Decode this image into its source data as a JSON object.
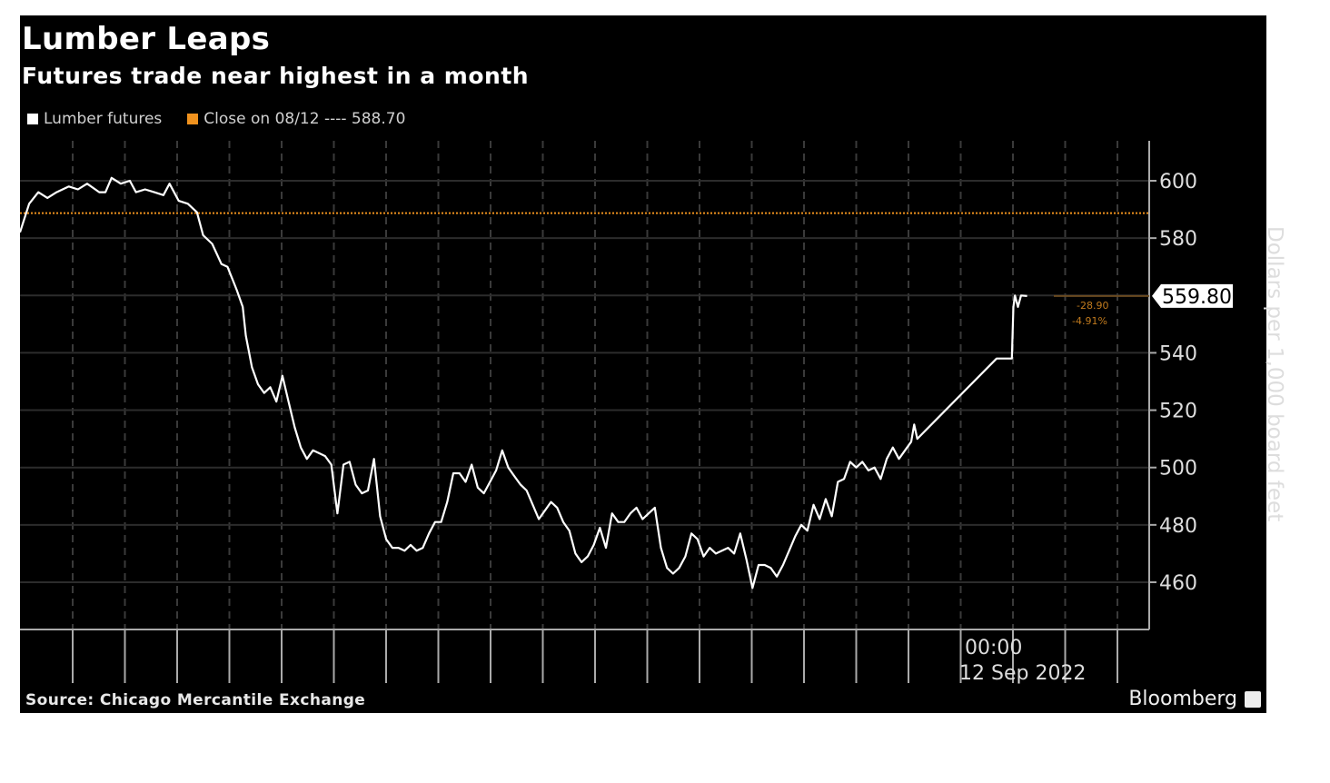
{
  "header": {
    "title": "Lumber Leaps",
    "subtitle": "Futures trade near highest in a month"
  },
  "legend": [
    {
      "label": "Lumber futures",
      "color": "#ffffff"
    },
    {
      "label": "Close on 08/12 ---- 588.70",
      "color": "#f0921e"
    }
  ],
  "footer": {
    "source": "Source: Chicago Mercantile Exchange",
    "brand": "Bloomberg"
  },
  "annotations": {
    "last_value": "559.80",
    "change": "-28.90",
    "change_pct": "-4.91%",
    "x_time": "00:00",
    "x_date": "12 Sep 2022"
  },
  "chart_data": {
    "type": "line",
    "title": "Lumber Leaps",
    "subtitle": "Futures trade near highest in a month",
    "xlabel": "",
    "ylabel": "Dollars per 1,000 board feet",
    "ylim": [
      442,
      616
    ],
    "yticks": [
      460,
      480,
      500,
      520,
      540,
      580,
      600
    ],
    "xtick_labels": [
      "00:00 12 Sep 2022"
    ],
    "grid": true,
    "legend_position": "top-left",
    "reference_line": {
      "label": "Close on 08/12",
      "value": 588.7,
      "color": "#f0921e"
    },
    "last_value": 559.8,
    "change": -28.9,
    "change_pct": -4.91,
    "series": [
      {
        "name": "Lumber futures",
        "color": "#ffffff",
        "points": [
          [
            0,
            582
          ],
          [
            3,
            592
          ],
          [
            6,
            596
          ],
          [
            9,
            594
          ],
          [
            12,
            596
          ],
          [
            16,
            598
          ],
          [
            19,
            597
          ],
          [
            22,
            599
          ],
          [
            26,
            596
          ],
          [
            28,
            596
          ],
          [
            30,
            601
          ],
          [
            33,
            599
          ],
          [
            36,
            600
          ],
          [
            38,
            596
          ],
          [
            41,
            597
          ],
          [
            44,
            596
          ],
          [
            47,
            595
          ],
          [
            49,
            599
          ],
          [
            52,
            593
          ],
          [
            55,
            592
          ],
          [
            58,
            589
          ],
          [
            60,
            581
          ],
          [
            63,
            578
          ],
          [
            66,
            571
          ],
          [
            68,
            570
          ],
          [
            71,
            562
          ],
          [
            73,
            556
          ],
          [
            74,
            546
          ],
          [
            76,
            535
          ],
          [
            78,
            529
          ],
          [
            80,
            526
          ],
          [
            82,
            528
          ],
          [
            84,
            523
          ],
          [
            86,
            532
          ],
          [
            88,
            523
          ],
          [
            90,
            514
          ],
          [
            92,
            507
          ],
          [
            94,
            503
          ],
          [
            96,
            506
          ],
          [
            98,
            505
          ],
          [
            100,
            504
          ],
          [
            102,
            501
          ],
          [
            104,
            484
          ],
          [
            106,
            501
          ],
          [
            108,
            502
          ],
          [
            110,
            494
          ],
          [
            112,
            491
          ],
          [
            114,
            492
          ],
          [
            116,
            503
          ],
          [
            118,
            483
          ],
          [
            120,
            475
          ],
          [
            122,
            472
          ],
          [
            124,
            472
          ],
          [
            126,
            471
          ],
          [
            128,
            473
          ],
          [
            130,
            471
          ],
          [
            132,
            472
          ],
          [
            134,
            477
          ],
          [
            136,
            481
          ],
          [
            138,
            481
          ],
          [
            140,
            488
          ],
          [
            142,
            498
          ],
          [
            144,
            498
          ],
          [
            146,
            495
          ],
          [
            148,
            501
          ],
          [
            150,
            493
          ],
          [
            152,
            491
          ],
          [
            154,
            495
          ],
          [
            156,
            499
          ],
          [
            158,
            506
          ],
          [
            160,
            500
          ],
          [
            162,
            497
          ],
          [
            164,
            494
          ],
          [
            166,
            492
          ],
          [
            168,
            487
          ],
          [
            170,
            482
          ],
          [
            172,
            485
          ],
          [
            174,
            488
          ],
          [
            176,
            486
          ],
          [
            178,
            481
          ],
          [
            180,
            478
          ],
          [
            182,
            470
          ],
          [
            184,
            467
          ],
          [
            186,
            469
          ],
          [
            188,
            473
          ],
          [
            190,
            479
          ],
          [
            192,
            472
          ],
          [
            194,
            484
          ],
          [
            196,
            481
          ],
          [
            198,
            481
          ],
          [
            200,
            484
          ],
          [
            202,
            486
          ],
          [
            204,
            482
          ],
          [
            206,
            484
          ],
          [
            208,
            486
          ],
          [
            210,
            472
          ],
          [
            212,
            465
          ],
          [
            214,
            463
          ],
          [
            216,
            465
          ],
          [
            218,
            469
          ],
          [
            220,
            477
          ],
          [
            222,
            475
          ],
          [
            224,
            469
          ],
          [
            226,
            472
          ],
          [
            228,
            470
          ],
          [
            230,
            471
          ],
          [
            232,
            472
          ],
          [
            234,
            470
          ],
          [
            236,
            477
          ],
          [
            238,
            468
          ],
          [
            240,
            458
          ],
          [
            242,
            466
          ],
          [
            244,
            466
          ],
          [
            246,
            465
          ],
          [
            248,
            462
          ],
          [
            250,
            466
          ],
          [
            252,
            471
          ],
          [
            254,
            476
          ],
          [
            256,
            480
          ],
          [
            258,
            478
          ],
          [
            260,
            487
          ],
          [
            262,
            482
          ],
          [
            264,
            489
          ],
          [
            266,
            483
          ],
          [
            268,
            495
          ],
          [
            270,
            496
          ],
          [
            272,
            502
          ],
          [
            274,
            500
          ],
          [
            276,
            502
          ],
          [
            278,
            499
          ],
          [
            280,
            500
          ],
          [
            282,
            496
          ],
          [
            284,
            503
          ],
          [
            286,
            507
          ],
          [
            288,
            503
          ],
          [
            290,
            506
          ],
          [
            292,
            509
          ],
          [
            293,
            515
          ],
          [
            294,
            510
          ],
          [
            320,
            538
          ],
          [
            325,
            538
          ],
          [
            325.5,
            556
          ],
          [
            326,
            560
          ],
          [
            327,
            556
          ],
          [
            328,
            560
          ],
          [
            330,
            559.8
          ]
        ]
      }
    ]
  }
}
